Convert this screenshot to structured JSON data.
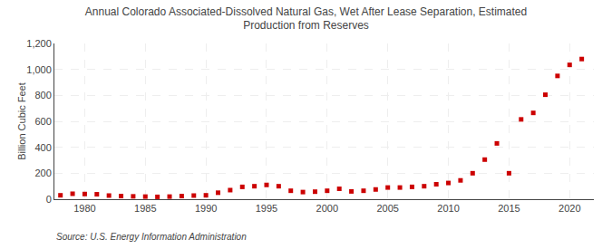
{
  "chart_data": {
    "type": "scatter",
    "title": "Annual Colorado Associated-Dissolved Natural Gas, Wet After Lease Separation, Estimated\nProduction from Reserves",
    "ylabel": "Billion Cubic Feet",
    "source": "Source: U.S. Energy Information Administration",
    "x": [
      1978,
      1979,
      1980,
      1981,
      1982,
      1983,
      1984,
      1985,
      1986,
      1987,
      1988,
      1989,
      1990,
      1991,
      1992,
      1993,
      1994,
      1995,
      1996,
      1997,
      1998,
      1999,
      2000,
      2001,
      2002,
      2003,
      2004,
      2005,
      2006,
      2007,
      2008,
      2009,
      2010,
      2011,
      2012,
      2013,
      2014,
      2015,
      2016,
      2017,
      2018,
      2019,
      2020,
      2021
    ],
    "values": [
      30,
      42,
      40,
      38,
      28,
      24,
      22,
      20,
      18,
      20,
      24,
      28,
      30,
      50,
      70,
      95,
      100,
      110,
      100,
      65,
      55,
      58,
      65,
      80,
      60,
      65,
      75,
      90,
      90,
      95,
      100,
      115,
      125,
      145,
      200,
      305,
      430,
      200,
      615,
      665,
      805,
      950,
      1035,
      1080
    ],
    "color": "#cc0000",
    "marker": "square",
    "xlim": [
      1977.5,
      2022
    ],
    "xticks": [
      1980,
      1985,
      1990,
      1995,
      2000,
      2005,
      2010,
      2015,
      2020
    ],
    "ylim": [
      0,
      1200
    ],
    "yticks": [
      0,
      200,
      400,
      600,
      800,
      {
        "value": 1000,
        "label": "1,000"
      },
      {
        "value": 1200,
        "label": "1,200"
      }
    ],
    "grid": true
  }
}
